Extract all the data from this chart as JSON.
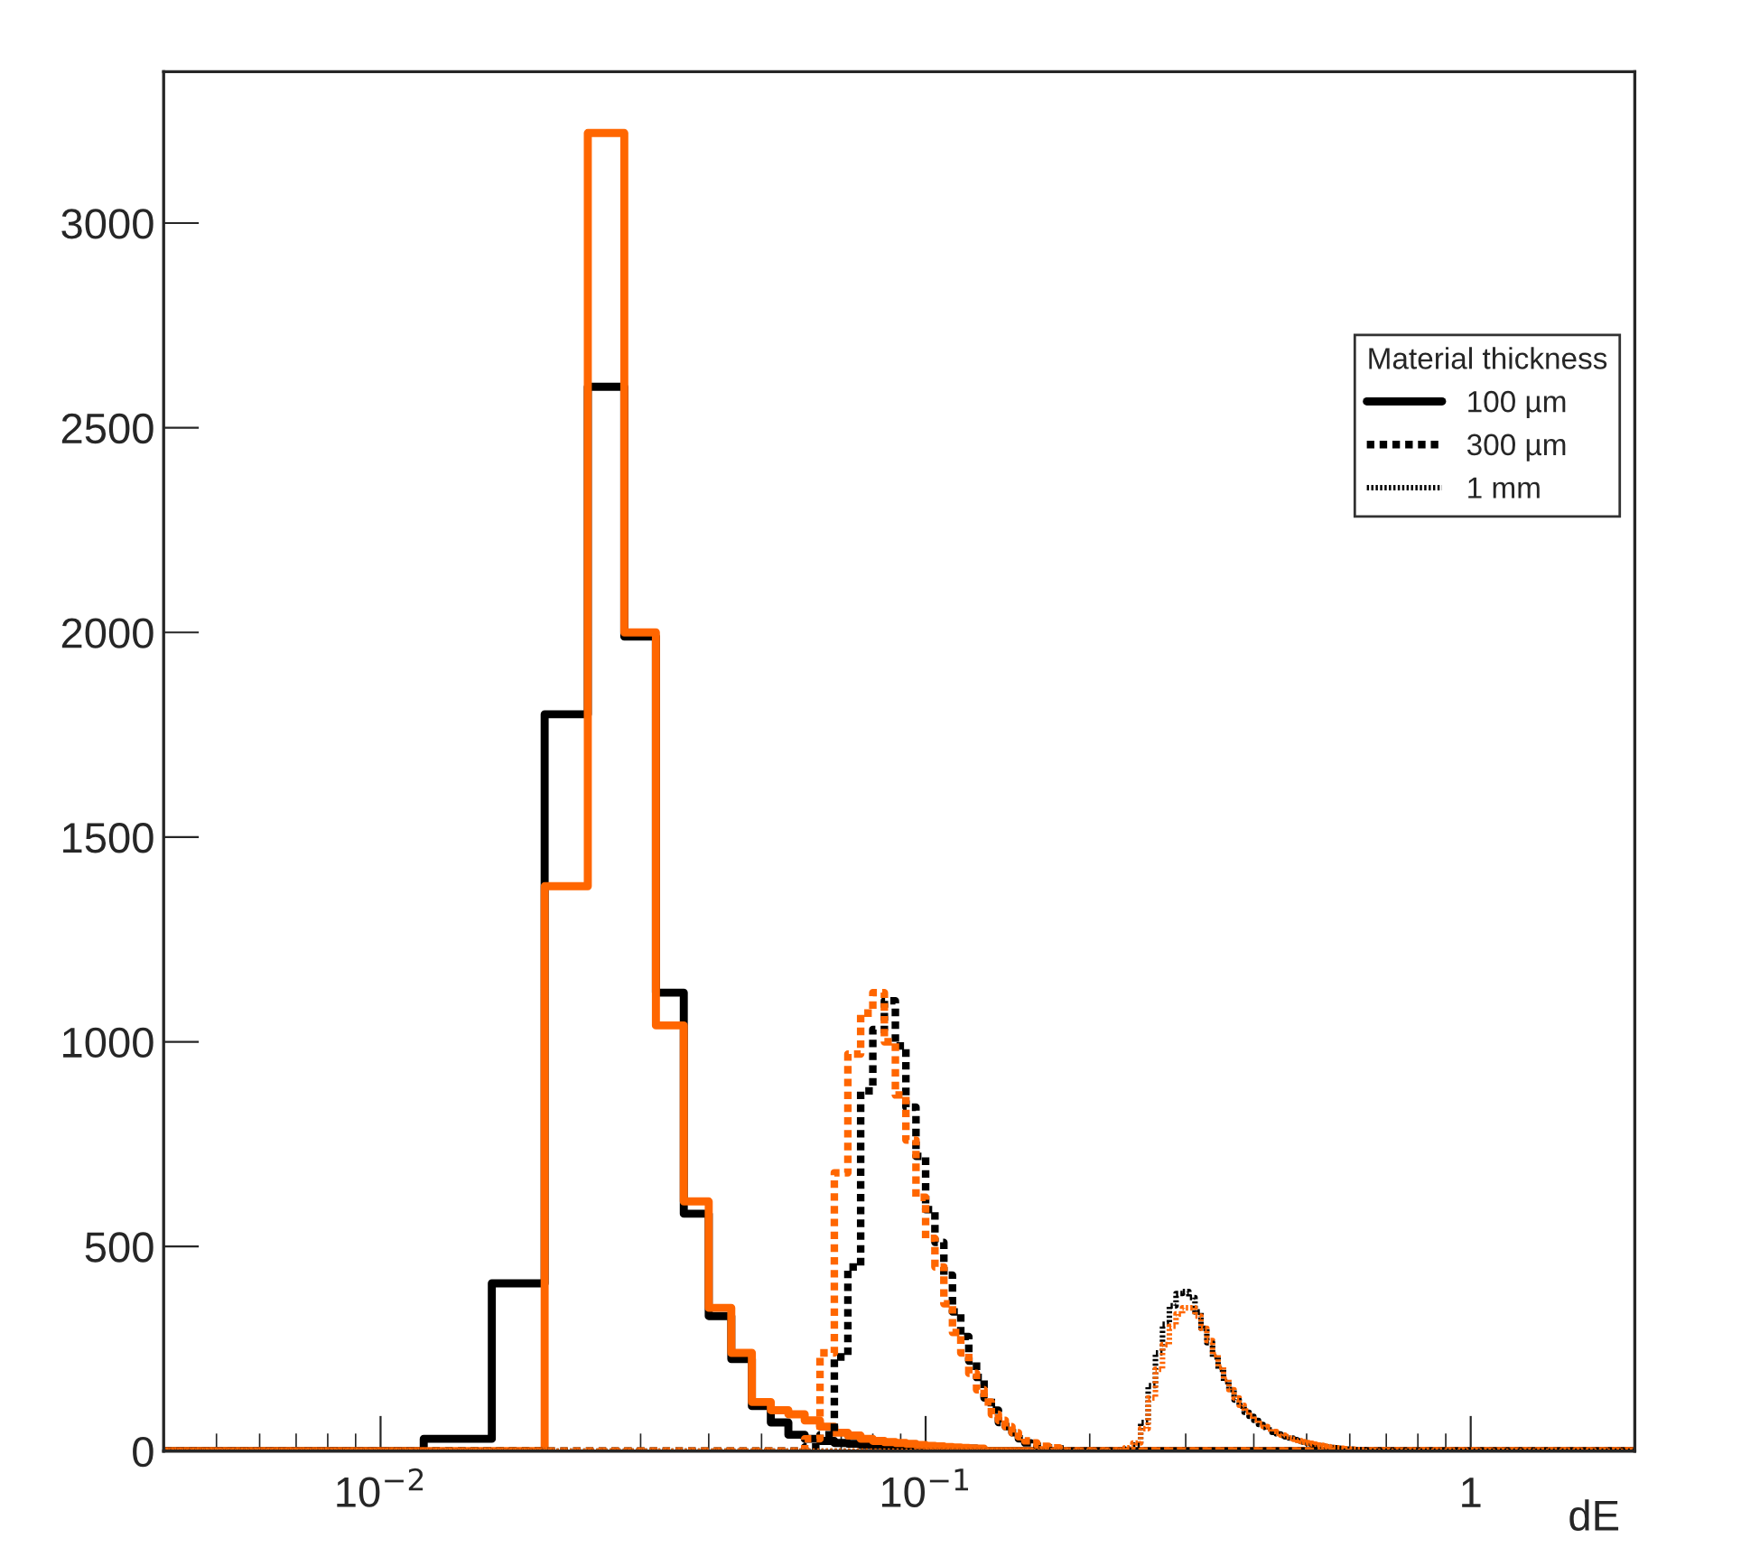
{
  "chart_data": {
    "type": "histogram",
    "xlabel": "dE",
    "legend_title": "Material thickness",
    "log": "x",
    "xlim": [
      0.004,
      2
    ],
    "xticks": [
      {
        "value": 0.01,
        "label": "10$^{−2}$"
      },
      {
        "value": 0.1,
        "label": "10$^{−1}$"
      },
      {
        "value": 1,
        "label": "1"
      }
    ],
    "ylim": [
      0,
      3370
    ],
    "yticks": [
      0,
      500,
      1000,
      1500,
      2000,
      2500,
      3000
    ],
    "legend": "top right",
    "grid": false,
    "bins": [
      0.004,
      0.012,
      0.016,
      0.02,
      0.024,
      0.028,
      0.032,
      0.036,
      0.04,
      0.044,
      0.048,
      0.052,
      0.056,
      0.06,
      0.064,
      0.068,
      0.072,
      0.076,
      0.08,
      0.084,
      0.088,
      0.092,
      0.096,
      0.1,
      0.104,
      0.108,
      0.112,
      0.116,
      0.12,
      0.124,
      0.128,
      0.132,
      0.136,
      0.14,
      0.144,
      0.148,
      0.152,
      0.156,
      0.16,
      0.164,
      0.168,
      0.172,
      0.176,
      0.18,
      0.232,
      0.24,
      0.248,
      0.256,
      0.264,
      0.272,
      0.28,
      0.288,
      0.296,
      0.304,
      0.312,
      0.32,
      0.328,
      0.336,
      0.344,
      0.352,
      0.36,
      0.368,
      0.376,
      0.384,
      0.392,
      0.4,
      0.408,
      0.416,
      0.424,
      0.432,
      0.44,
      0.448,
      0.456,
      0.464,
      0.472,
      0.48,
      0.488,
      0.496,
      0.504,
      0.512,
      0.52,
      0.528,
      0.536,
      0.544,
      0.552,
      0.56,
      0.568,
      0.576,
      0.584,
      0.592,
      0.6,
      0.608,
      0.616,
      0.624,
      0.632,
      0.64,
      2.0
    ],
    "series": [
      {
        "name": "100 µm",
        "color": "#000000",
        "line_style": "solid",
        "values": [
          0,
          30,
          410,
          1800,
          2600,
          1990,
          1120,
          580,
          330,
          225,
          110,
          70,
          40,
          30,
          25,
          20,
          18,
          15,
          14,
          12,
          11,
          10,
          9,
          8,
          8,
          7,
          7,
          6,
          6,
          5,
          0,
          0,
          0,
          0,
          0,
          0,
          0,
          0,
          0,
          0,
          0,
          0,
          0,
          0,
          0,
          0,
          0,
          0,
          0,
          0,
          0,
          0,
          0,
          0,
          0,
          0,
          0,
          0,
          0,
          0,
          0,
          0,
          0,
          0,
          0,
          0,
          0,
          0,
          0,
          0,
          0,
          0,
          0,
          0,
          0,
          0,
          0,
          0,
          0,
          0,
          0,
          0,
          0,
          0,
          0,
          0,
          0,
          0,
          0,
          0,
          0,
          0,
          0,
          0,
          0,
          0
        ]
      },
      {
        "color": "#ff6600",
        "line_style": "solid",
        "values": [
          0,
          0,
          0,
          1380,
          3220,
          2000,
          1040,
          610,
          350,
          240,
          120,
          100,
          90,
          75,
          60,
          45,
          38,
          30,
          25,
          22,
          20,
          18,
          15,
          13,
          12,
          10,
          9,
          8,
          7,
          6,
          0,
          0,
          0,
          0,
          0,
          0,
          0,
          0,
          0,
          0,
          0,
          0,
          0,
          0,
          0,
          0,
          0,
          0,
          0,
          0,
          0,
          0,
          0,
          0,
          0,
          0,
          0,
          0,
          0,
          0,
          0,
          0,
          0,
          0,
          0,
          0,
          0,
          0,
          0,
          0,
          0,
          0,
          0,
          0,
          0,
          0,
          0,
          0,
          0,
          0,
          0,
          0,
          0,
          0,
          0,
          0,
          0,
          0,
          0,
          0,
          0,
          0,
          0,
          0,
          0,
          0
        ]
      },
      {
        "name": "300 µm",
        "color": "#000000",
        "line_style": "dashed",
        "values": [
          0,
          0,
          0,
          0,
          0,
          0,
          0,
          0,
          0,
          0,
          0,
          0,
          0,
          10,
          40,
          230,
          450,
          880,
          1030,
          1100,
          990,
          840,
          720,
          590,
          510,
          430,
          340,
          280,
          220,
          180,
          130,
          100,
          70,
          60,
          45,
          30,
          20,
          15,
          12,
          10,
          8,
          5,
          5,
          0,
          0,
          0,
          0,
          0,
          0,
          0,
          0,
          0,
          0,
          0,
          0,
          0,
          0,
          0,
          0,
          0,
          0,
          0,
          0,
          0,
          0,
          0,
          0,
          0,
          0,
          0,
          0,
          0,
          0,
          0,
          0,
          0,
          0,
          0,
          0,
          0,
          0,
          0,
          0,
          0,
          0,
          0,
          0,
          0,
          0,
          0,
          0,
          0,
          0,
          0,
          0,
          0
        ]
      },
      {
        "color": "#ff6600",
        "line_style": "dashed",
        "values": [
          0,
          0,
          0,
          0,
          0,
          0,
          0,
          0,
          0,
          0,
          0,
          0,
          0,
          30,
          240,
          680,
          970,
          1070,
          1120,
          1000,
          870,
          760,
          620,
          520,
          450,
          360,
          290,
          240,
          190,
          150,
          120,
          90,
          75,
          60,
          45,
          35,
          25,
          20,
          15,
          12,
          10,
          8,
          5,
          0,
          0,
          0,
          0,
          0,
          0,
          0,
          0,
          0,
          0,
          0,
          0,
          0,
          0,
          0,
          0,
          0,
          0,
          0,
          0,
          0,
          0,
          0,
          0,
          0,
          0,
          0,
          0,
          0,
          0,
          0,
          0,
          0,
          0,
          0,
          0,
          0,
          0,
          0,
          0,
          0,
          0,
          0,
          0,
          0,
          0,
          0,
          0,
          0,
          0,
          0,
          0,
          0
        ]
      },
      {
        "name": "1 mm",
        "color": "#000000",
        "line_style": "dotted",
        "values": [
          0,
          0,
          0,
          0,
          0,
          0,
          0,
          0,
          0,
          0,
          0,
          0,
          0,
          0,
          0,
          0,
          0,
          0,
          0,
          0,
          0,
          0,
          0,
          0,
          0,
          0,
          0,
          0,
          0,
          0,
          0,
          0,
          0,
          0,
          0,
          0,
          0,
          0,
          0,
          0,
          0,
          0,
          0,
          0,
          5,
          15,
          70,
          160,
          240,
          310,
          355,
          385,
          390,
          375,
          340,
          300,
          265,
          230,
          200,
          170,
          150,
          125,
          110,
          95,
          85,
          75,
          65,
          58,
          52,
          46,
          42,
          38,
          35,
          32,
          28,
          25,
          22,
          20,
          18,
          16,
          14,
          13,
          12,
          10,
          9,
          8,
          7,
          6,
          6,
          5,
          5,
          4,
          4,
          3,
          3,
          0
        ]
      },
      {
        "color": "#ff6600",
        "line_style": "dotted",
        "values": [
          0,
          0,
          0,
          0,
          0,
          0,
          0,
          0,
          0,
          0,
          0,
          0,
          0,
          0,
          0,
          0,
          0,
          0,
          0,
          0,
          0,
          0,
          0,
          0,
          0,
          0,
          0,
          0,
          0,
          0,
          0,
          0,
          0,
          0,
          0,
          0,
          0,
          0,
          0,
          0,
          0,
          0,
          0,
          0,
          8,
          20,
          55,
          130,
          200,
          260,
          305,
          335,
          350,
          350,
          330,
          300,
          270,
          235,
          205,
          175,
          150,
          130,
          112,
          98,
          86,
          76,
          67,
          60,
          54,
          48,
          43,
          39,
          35,
          32,
          29,
          26,
          23,
          21,
          19,
          17,
          15,
          14,
          12,
          11,
          10,
          9,
          8,
          7,
          6,
          6,
          5,
          5,
          4,
          4,
          3,
          0
        ]
      }
    ]
  }
}
